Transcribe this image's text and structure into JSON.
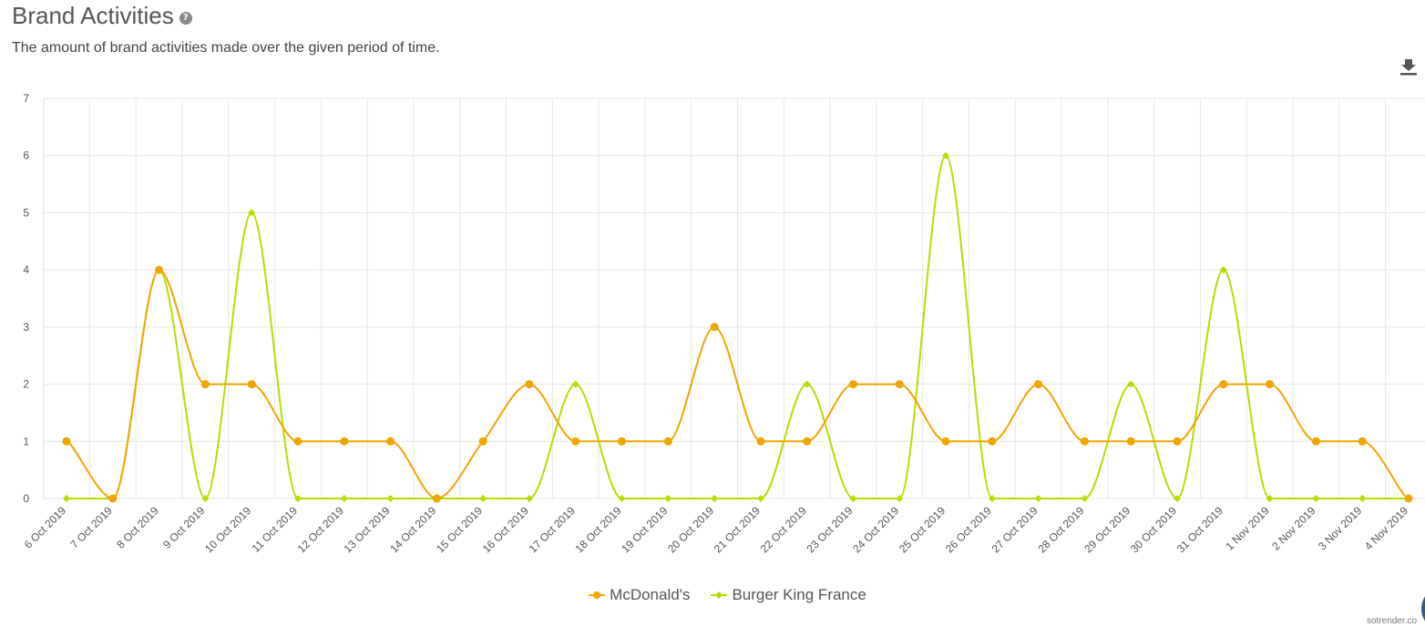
{
  "header": {
    "title": "Brand Activities",
    "help_icon": "question-circle-icon",
    "subtitle": "The amount of brand activities made over the given period of time.",
    "download_icon": "download-icon"
  },
  "colors": {
    "mcdonalds": "#f0a500",
    "burger_king": "#b5dd00",
    "grid": "#e6e6e6",
    "axis_text": "#555555"
  },
  "chart_data": {
    "type": "line",
    "categories": [
      "6 Oct 2019",
      "7 Oct 2019",
      "8 Oct 2019",
      "9 Oct 2019",
      "10 Oct 2019",
      "11 Oct 2019",
      "12 Oct 2019",
      "13 Oct 2019",
      "14 Oct 2019",
      "15 Oct 2019",
      "16 Oct 2019",
      "17 Oct 2019",
      "18 Oct 2019",
      "19 Oct 2019",
      "20 Oct 2019",
      "21 Oct 2019",
      "22 Oct 2019",
      "23 Oct 2019",
      "24 Oct 2019",
      "25 Oct 2019",
      "26 Oct 2019",
      "27 Oct 2019",
      "28 Oct 2019",
      "29 Oct 2019",
      "30 Oct 2019",
      "31 Oct 2019",
      "1 Nov 2019",
      "2 Nov 2019",
      "3 Nov 2019",
      "4 Nov 2019"
    ],
    "series": [
      {
        "name": "McDonald's",
        "marker": "circle",
        "values": [
          1,
          0,
          4,
          2,
          2,
          1,
          1,
          1,
          0,
          1,
          2,
          1,
          1,
          1,
          3,
          1,
          1,
          2,
          2,
          1,
          1,
          2,
          1,
          1,
          1,
          2,
          2,
          1,
          1,
          0
        ]
      },
      {
        "name": "Burger King France",
        "marker": "diamond",
        "values": [
          0,
          0,
          4,
          0,
          5,
          0,
          0,
          0,
          0,
          0,
          0,
          2,
          0,
          0,
          0,
          0,
          2,
          0,
          0,
          6,
          0,
          0,
          0,
          2,
          0,
          4,
          0,
          0,
          0,
          0
        ]
      }
    ],
    "y_ticks": [
      "0",
      "1",
      "2",
      "3",
      "4",
      "5",
      "6",
      "7"
    ],
    "ylim": [
      0,
      7
    ],
    "grid": true,
    "legend_position": "bottom-center"
  },
  "footer": {
    "watermark": "sotrender.co"
  }
}
